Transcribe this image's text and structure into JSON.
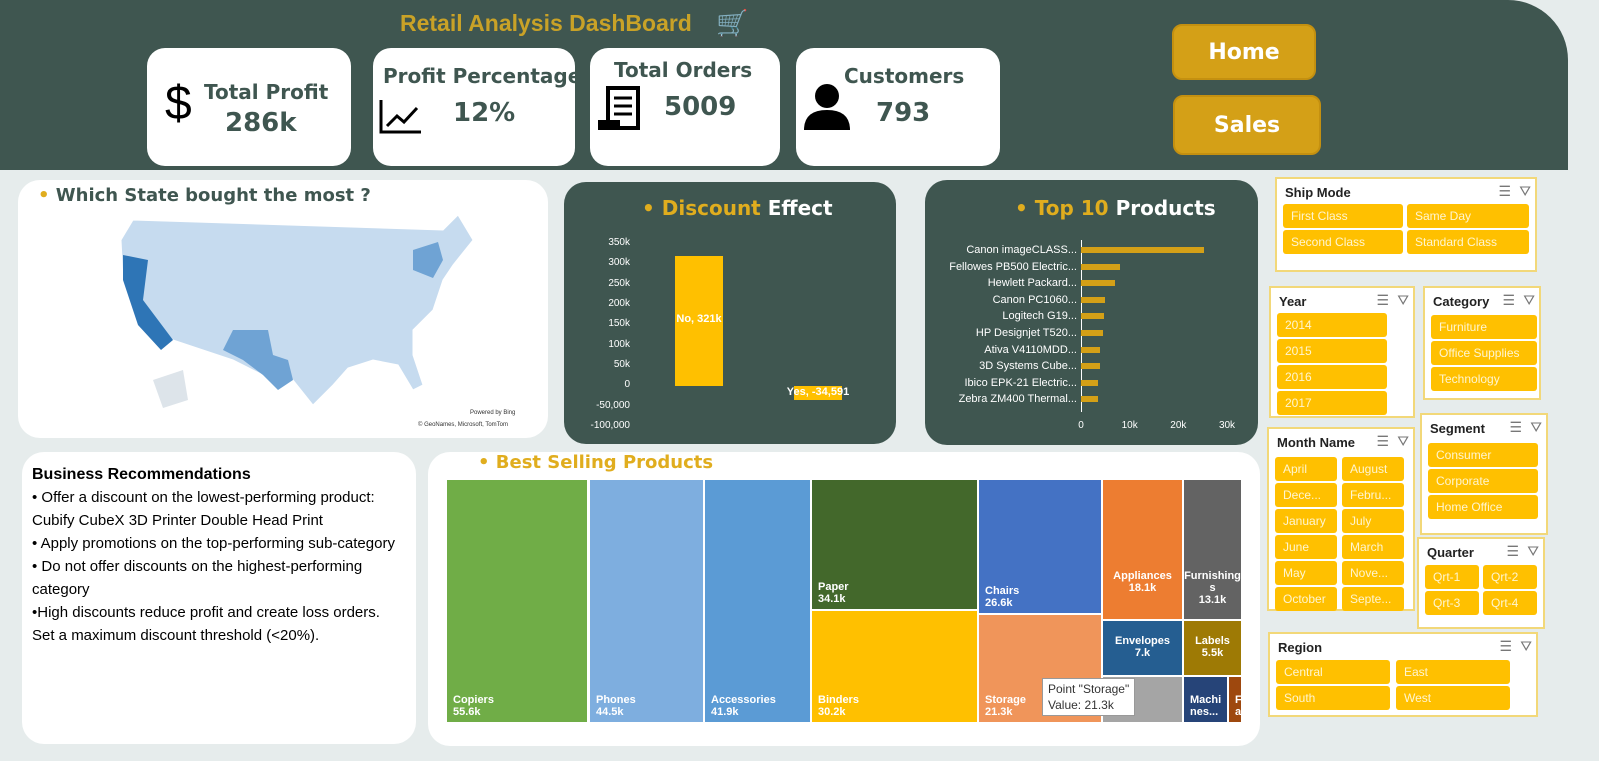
{
  "header": {
    "title": "Retail Analysis DashBoard",
    "cart_icon": "shopping-cart-icon"
  },
  "kpis": [
    {
      "label": "Total Profit",
      "value": "286k",
      "icon": "dollar-icon"
    },
    {
      "label": "Profit Percentage",
      "value": "12%",
      "icon": "line-chart-icon"
    },
    {
      "label": "Total Orders",
      "value": "5009",
      "icon": "receipt-icon"
    },
    {
      "label": "Customers",
      "value": "793",
      "icon": "user-icon"
    }
  ],
  "nav": {
    "home": "Home",
    "sales": "Sales"
  },
  "map": {
    "title": "Which State bought the most ?",
    "credit1": "Powered by Bing",
    "credit2": "© GeoNames, Microsoft, TomTom"
  },
  "colors": {
    "header": "#3f5650",
    "gold": "#ffc000",
    "accent": "#e0ad1e"
  },
  "chart_data": [
    {
      "type": "bar",
      "title_part1": "Discount",
      "title_part2": "Effect",
      "categories": [
        "No",
        "Yes"
      ],
      "values": [
        321000,
        -34591
      ],
      "data_labels": [
        "No, 321k",
        "Yes, -34,591"
      ],
      "ylim": [
        -100000,
        350000
      ],
      "yticks": [
        "350k",
        "300k",
        "250k",
        "200k",
        "150k",
        "100k",
        "50k",
        "0",
        "-50,000",
        "-100,000"
      ]
    },
    {
      "type": "bar",
      "orientation": "horizontal",
      "title_part1": "Top 10",
      "title_part2": "Products",
      "categories": [
        "Canon imageCLASS...",
        "Fellowes PB500 Electric...",
        "Hewlett Packard...",
        "Canon PC1060...",
        "Logitech G19...",
        "HP Designjet T520...",
        "Ativa V4110MDD...",
        "3D Systems Cube...",
        "Ibico EPK-21 Electric...",
        "Zebra ZM400 Thermal..."
      ],
      "values": [
        25200,
        8000,
        7000,
        4900,
        4700,
        4500,
        3900,
        3900,
        3500,
        3500
      ],
      "xlim": [
        0,
        30000
      ],
      "xticks": [
        "0",
        "10k",
        "20k",
        "30k"
      ]
    }
  ],
  "recommendations": {
    "title": "Business Recommendations",
    "items": [
      "• Offer a discount on the lowest-performing product: Cubify CubeX 3D Printer Double Head Print",
      "• Apply promotions on the top-performing sub-category",
      "• Do not offer discounts on the highest-performing category",
      "•High discounts reduce profit and create loss orders. Set a maximum discount threshold (<20%)."
    ]
  },
  "treemap": {
    "title": "Best Selling Products",
    "items": [
      {
        "name": "Copiers",
        "value": "55.6k",
        "color": "#70ad47"
      },
      {
        "name": "Phones",
        "value": "44.5k",
        "color": "#7eaedf"
      },
      {
        "name": "Accessories",
        "value": "41.9k",
        "color": "#5b9bd5"
      },
      {
        "name": "Paper",
        "value": "34.1k",
        "color": "#43682b"
      },
      {
        "name": "Binders",
        "value": "30.2k",
        "color": "#ffc000"
      },
      {
        "name": "Chairs",
        "value": "26.6k",
        "color": "#4472c4"
      },
      {
        "name": "Storage",
        "value": "21.3k",
        "color": "#f0955a"
      },
      {
        "name": "Appliances",
        "value": "18.1k",
        "color": "#ed7d31"
      },
      {
        "name": "Furnishings",
        "value": "13.1k",
        "color": "#636363"
      },
      {
        "name": "Envelopes",
        "value": "7.k",
        "color": "#255e91"
      },
      {
        "name": "Labels",
        "value": "5.5k",
        "color": "#9e7a05"
      },
      {
        "name": "Machines",
        "value": "nes...",
        "color": "#264478"
      },
      {
        "name": "F",
        "value": "a",
        "color": "#9e480e"
      }
    ],
    "tooltip_line1": "Point \"Storage\"",
    "tooltip_line2": "Value: 21.3k",
    "machines_label": "Machi"
  },
  "slicers": {
    "ship_mode": {
      "title": "Ship Mode",
      "items": [
        "First Class",
        "Same Day",
        "Second Class",
        "Standard Class"
      ]
    },
    "year": {
      "title": "Year",
      "items": [
        "2014",
        "2015",
        "2016",
        "2017"
      ]
    },
    "category": {
      "title": "Category",
      "items": [
        "Furniture",
        "Office Supplies",
        "Technology"
      ]
    },
    "month": {
      "title": "Month Name",
      "items": [
        "April",
        "August",
        "Dece...",
        "Febru...",
        "January",
        "July",
        "June",
        "March",
        "May",
        "Nove...",
        "October",
        "Septe..."
      ]
    },
    "segment": {
      "title": "Segment",
      "items": [
        "Consumer",
        "Corporate",
        "Home Office"
      ]
    },
    "quarter": {
      "title": "Quarter",
      "items": [
        "Qrt-1",
        "Qrt-2",
        "Qrt-3",
        "Qrt-4"
      ]
    },
    "region": {
      "title": "Region",
      "items": [
        "Central",
        "East",
        "South",
        "West"
      ]
    }
  }
}
